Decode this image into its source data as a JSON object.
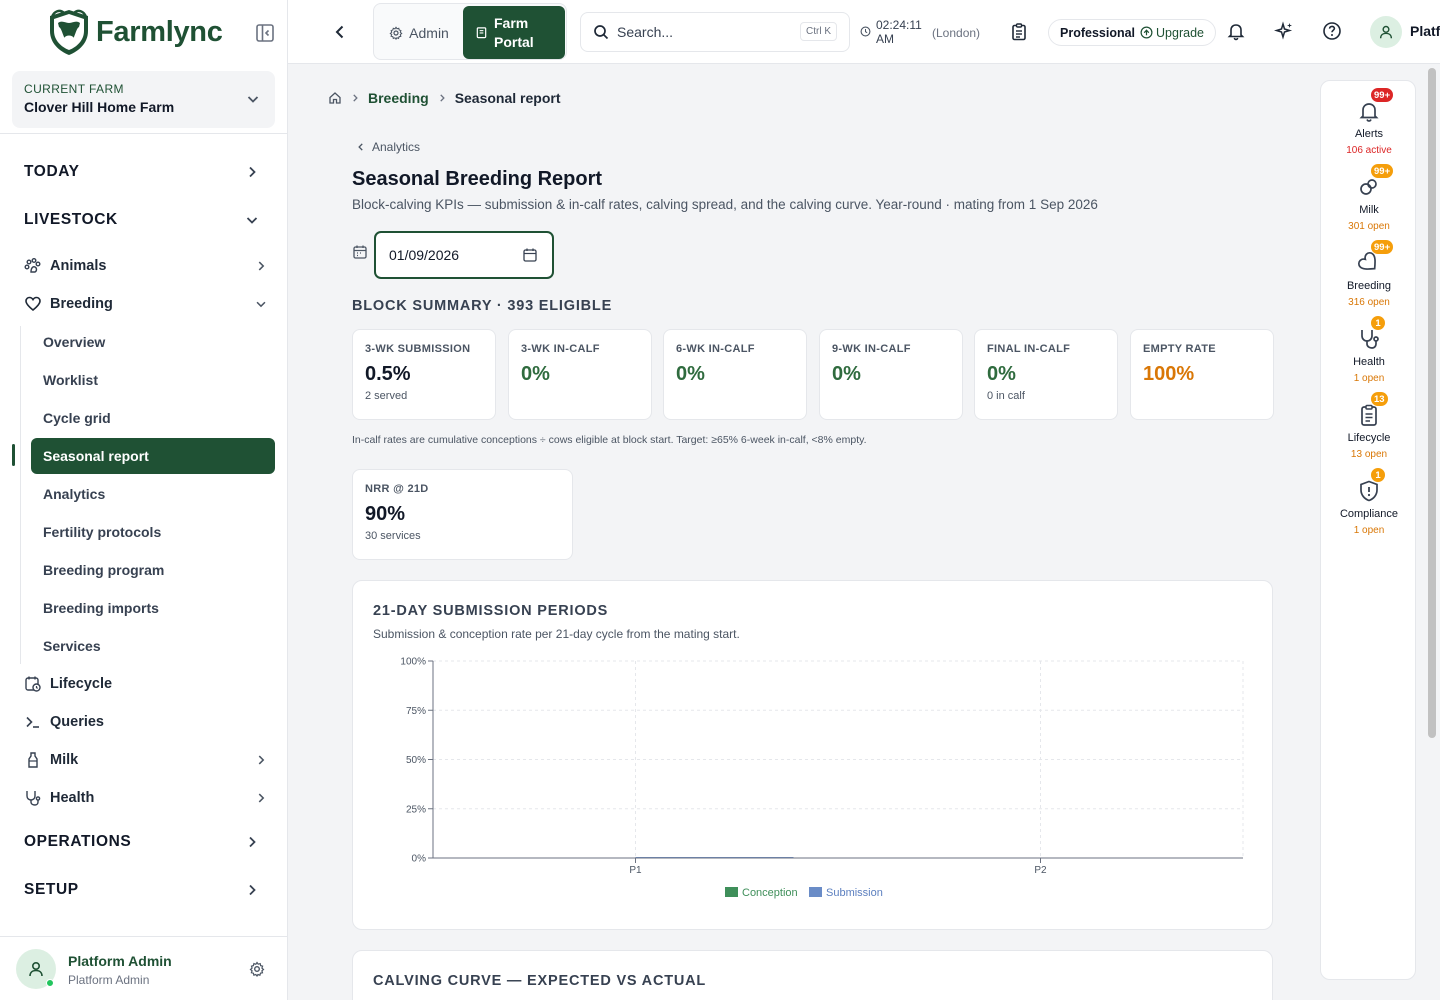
{
  "brand": {
    "name": "Farmlync"
  },
  "farm": {
    "label": "CURRENT FARM",
    "name": "Clover Hill Home Farm"
  },
  "sidebar": {
    "sections": {
      "today": "TODAY",
      "livestock": "LIVESTOCK",
      "operations": "OPERATIONS",
      "setup": "SETUP"
    },
    "items": {
      "animals": "Animals",
      "breeding": "Breeding",
      "lifecycle": "Lifecycle",
      "queries": "Queries",
      "milk": "Milk",
      "health": "Health"
    },
    "breeding_sub": [
      "Overview",
      "Worklist",
      "Cycle grid",
      "Seasonal report",
      "Analytics",
      "Fertility protocols",
      "Breeding program",
      "Breeding imports",
      "Services"
    ],
    "active_item": "Seasonal report"
  },
  "user": {
    "name": "Platform Admin",
    "role": "Platform Admin"
  },
  "topbar": {
    "admin_label": "Admin",
    "portal_line1": "Farm",
    "portal_line2": "Portal",
    "search_placeholder": "Search...",
    "search_shortcut": "Ctrl K",
    "time_line1": "02:24:11",
    "time_line2": "AM",
    "timezone": "(London)",
    "plan": "Professional",
    "upgrade": "Upgrade",
    "user_short": "Platf"
  },
  "breadcrumb": {
    "parent": "Breeding",
    "current": "Seasonal report"
  },
  "back_link": "Analytics",
  "page": {
    "title": "Seasonal Breeding Report",
    "subtitle": "Block-calving KPIs — submission & in-calf rates, calving spread, and the calving curve. Year-round · mating from 1 Sep 2026",
    "date_value": "01/09/2026"
  },
  "block_summary": {
    "title": "BLOCK SUMMARY · 393 ELIGIBLE",
    "kpis": [
      {
        "label": "3-WK SUBMISSION",
        "value": "0.5%",
        "note": "2 served",
        "tone": "dark"
      },
      {
        "label": "3-WK IN-CALF",
        "value": "0%",
        "note": "",
        "tone": "green"
      },
      {
        "label": "6-WK IN-CALF",
        "value": "0%",
        "note": "",
        "tone": "green"
      },
      {
        "label": "9-WK IN-CALF",
        "value": "0%",
        "note": "",
        "tone": "green"
      },
      {
        "label": "FINAL IN-CALF",
        "value": "0%",
        "note": "0 in calf",
        "tone": "green"
      },
      {
        "label": "EMPTY RATE",
        "value": "100%",
        "note": "",
        "tone": "orange"
      }
    ],
    "note": "In-calf rates are cumulative conceptions ÷ cows eligible at block start. Target: ≥65% 6-week in-calf, <8% empty.",
    "nrr": {
      "label": "NRR @ 21D",
      "value": "90%",
      "note": "30 services"
    }
  },
  "submission_card": {
    "title": "21-DAY SUBMISSION PERIODS",
    "subtitle": "Submission & conception rate per 21-day cycle from the mating start."
  },
  "chart_data": {
    "type": "bar",
    "categories": [
      "P1",
      "P2"
    ],
    "series": [
      {
        "name": "Conception",
        "values": [
          0,
          0
        ],
        "color": "#3f8f5a"
      },
      {
        "name": "Submission",
        "values": [
          0.5,
          0
        ],
        "color": "#6a8cc7"
      }
    ],
    "ylim": [
      0,
      100
    ],
    "yticks": [
      "0%",
      "25%",
      "50%",
      "75%",
      "100%"
    ],
    "grid": true,
    "legend": "bottom"
  },
  "calving_card": {
    "title": "CALVING CURVE — EXPECTED VS ACTUAL"
  },
  "rail": [
    {
      "label": "Alerts",
      "count": "106 active",
      "badge": "99+",
      "badge_color": "#dc2626",
      "count_color": "#dc2626",
      "icon": "bell-icon"
    },
    {
      "label": "Milk",
      "count": "301 open",
      "badge": "99+",
      "badge_color": "#f59e0b",
      "count_color": "#d97706",
      "icon": "milk-icon"
    },
    {
      "label": "Breeding",
      "count": "316 open",
      "badge": "99+",
      "badge_color": "#f59e0b",
      "count_color": "#d97706",
      "icon": "heart-icon"
    },
    {
      "label": "Health",
      "count": "1 open",
      "badge": "1",
      "badge_color": "#f59e0b",
      "count_color": "#d97706",
      "icon": "stethoscope-icon"
    },
    {
      "label": "Lifecycle",
      "count": "13 open",
      "badge": "13",
      "badge_color": "#f59e0b",
      "count_color": "#d97706",
      "icon": "clipboard-icon"
    },
    {
      "label": "Compliance",
      "count": "1 open",
      "badge": "1",
      "badge_color": "#f59e0b",
      "count_color": "#d97706",
      "icon": "shield-alert-icon"
    }
  ]
}
